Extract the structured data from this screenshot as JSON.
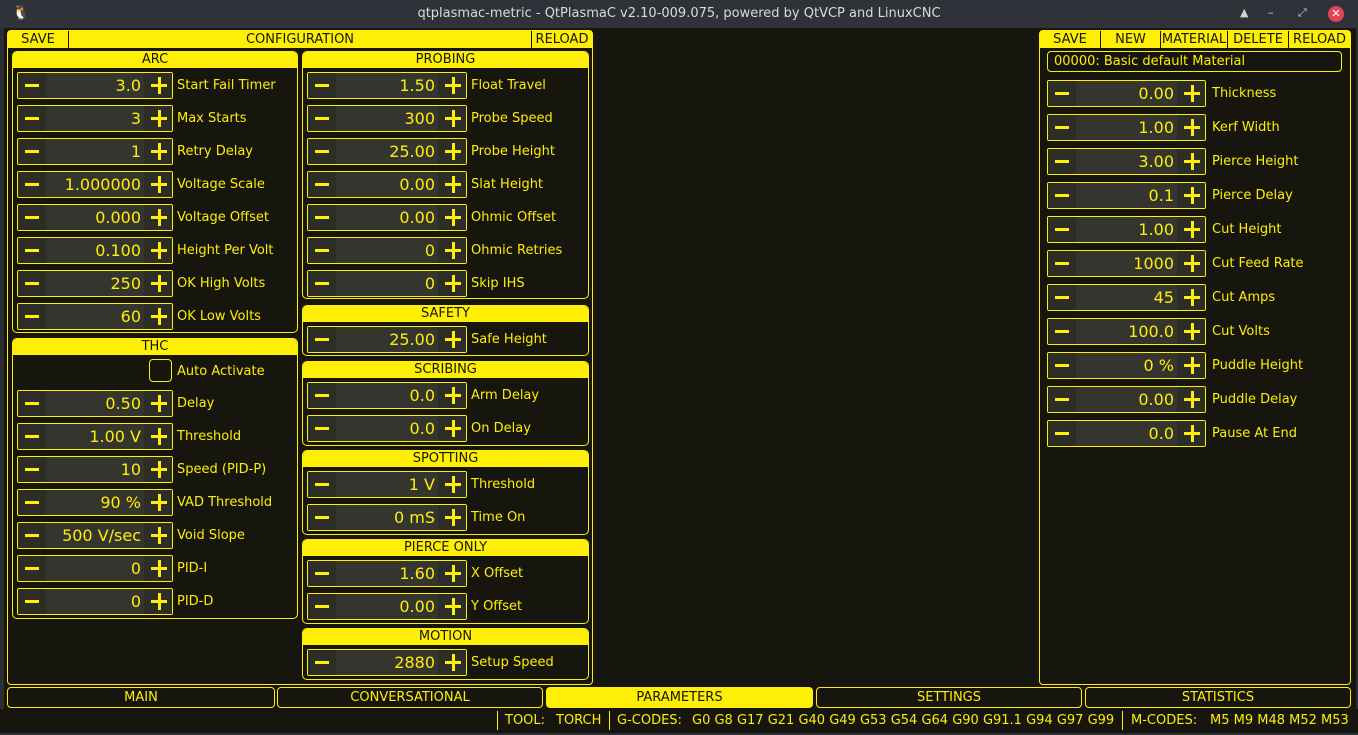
{
  "window": {
    "title": "qtplasmac-metric - QtPlasmaC v2.10-009.075, powered by QtVCP and LinuxCNC",
    "controls": [
      "▲",
      "–",
      "⤢",
      "✕"
    ]
  },
  "config": {
    "save": "SAVE",
    "title": "CONFIGURATION",
    "reload": "RELOAD",
    "groups": [
      {
        "title": "ARC",
        "rows": [
          [
            "3.0",
            "Start Fail Timer"
          ],
          [
            "3",
            "Max Starts"
          ],
          [
            "1",
            "Retry Delay"
          ],
          [
            "1.000000",
            "Voltage Scale"
          ],
          [
            "0.000",
            "Voltage Offset"
          ],
          [
            "0.100",
            "Height Per Volt"
          ],
          [
            "250",
            "OK High Volts"
          ],
          [
            "60",
            "OK Low Volts"
          ]
        ]
      },
      {
        "title": "THC",
        "checkbox": {
          "label": "Auto Activate",
          "checked": false
        },
        "rows": [
          [
            "0.50",
            "Delay"
          ],
          [
            "1.00 V",
            "Threshold"
          ],
          [
            "10",
            "Speed (PID-P)"
          ],
          [
            "90 %",
            "VAD Threshold"
          ],
          [
            "500 V/sec",
            "Void Slope"
          ],
          [
            "0",
            "PID-I"
          ],
          [
            "0",
            "PID-D"
          ]
        ]
      },
      {
        "title": "PROBING",
        "rows": [
          [
            "1.50",
            "Float Travel"
          ],
          [
            "300",
            "Probe Speed"
          ],
          [
            "25.00",
            "Probe Height"
          ],
          [
            "0.00",
            "Slat Height"
          ],
          [
            "0.00",
            "Ohmic Offset"
          ],
          [
            "0",
            "Ohmic Retries"
          ],
          [
            "0",
            "Skip IHS"
          ]
        ]
      },
      {
        "title": "SAFETY",
        "rows": [
          [
            "25.00",
            "Safe Height"
          ]
        ]
      },
      {
        "title": "SCRIBING",
        "rows": [
          [
            "0.0",
            "Arm Delay"
          ],
          [
            "0.0",
            "On Delay"
          ]
        ]
      },
      {
        "title": "SPOTTING",
        "rows": [
          [
            "1 V",
            "Threshold"
          ],
          [
            "0 mS",
            "Time On"
          ]
        ]
      },
      {
        "title": "PIERCE ONLY",
        "rows": [
          [
            "1.60",
            "X Offset"
          ],
          [
            "0.00",
            "Y Offset"
          ]
        ]
      },
      {
        "title": "MOTION",
        "rows": [
          [
            "2880",
            "Setup Speed"
          ]
        ]
      }
    ]
  },
  "material": {
    "buttons": [
      "SAVE",
      "NEW",
      "MATERIAL",
      "DELETE",
      "RELOAD"
    ],
    "selected": "00000: Basic default Material",
    "rows": [
      [
        "0.00",
        "Thickness"
      ],
      [
        "1.00",
        "Kerf Width"
      ],
      [
        "3.00",
        "Pierce Height"
      ],
      [
        "0.1",
        "Pierce Delay"
      ],
      [
        "1.00",
        "Cut Height"
      ],
      [
        "1000",
        "Cut Feed Rate"
      ],
      [
        "45",
        "Cut Amps"
      ],
      [
        "100.0",
        "Cut Volts"
      ],
      [
        "0 %",
        "Puddle Height"
      ],
      [
        "0.00",
        "Puddle Delay"
      ],
      [
        "0.0",
        "Pause At End"
      ]
    ]
  },
  "tabs": [
    {
      "label": "MAIN"
    },
    {
      "label": "CONVERSATIONAL"
    },
    {
      "label": "PARAMETERS",
      "active": true
    },
    {
      "label": "SETTINGS"
    },
    {
      "label": "STATISTICS"
    }
  ],
  "status": {
    "tool_label": "TOOL:",
    "tool": "TORCH",
    "gcodes_label": "G-CODES:",
    "gcodes": "G0 G8 G17 G21 G40 G49 G53 G54 G64 G90 G91.1 G94 G97 G99",
    "mcodes_label": "M-CODES:",
    "mcodes": "M5 M9 M48 M52 M53"
  },
  "colors": {
    "accent": "#ffee06",
    "background": "#16160f",
    "field": "#35352f"
  }
}
